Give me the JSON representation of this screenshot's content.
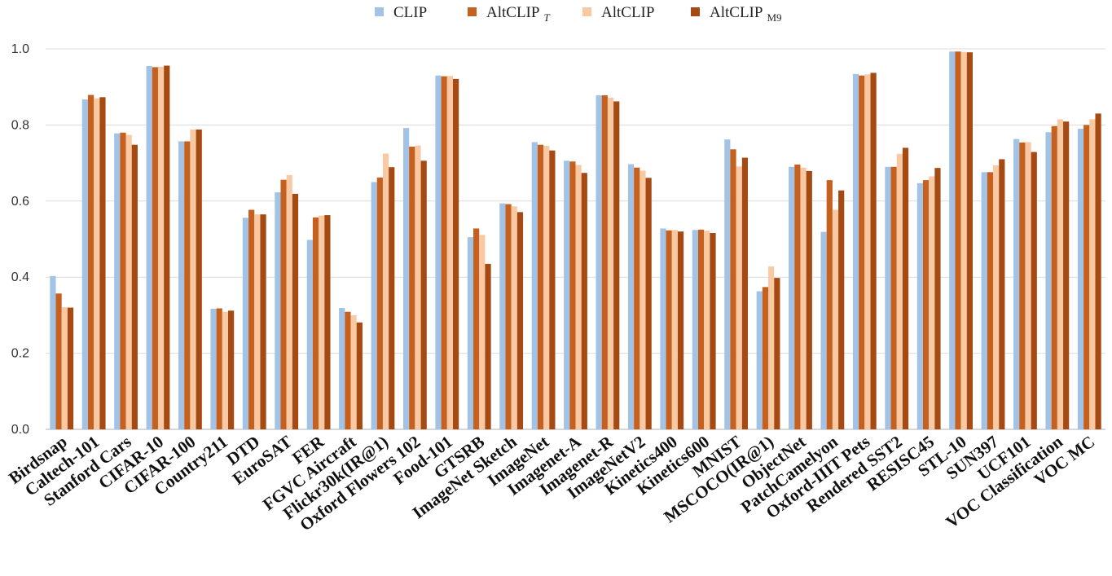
{
  "colors": {
    "CLIP": "#a3c3e6",
    "AltCLIP_T": "#c6601f",
    "AltCLIP": "#f8c9a3",
    "AltCLIP_M9": "#a54a12",
    "grid": "#dcdcdc",
    "axis": "#bfbfbf"
  },
  "legend": [
    {
      "key": "CLIP",
      "base": "CLIP",
      "sub": ""
    },
    {
      "key": "AltCLIP_T",
      "base": "AltCLIP",
      "sub": "T"
    },
    {
      "key": "AltCLIP",
      "base": "AltCLIP",
      "sub": ""
    },
    {
      "key": "AltCLIP_M9",
      "base": "AltCLIP",
      "sub": "M9"
    }
  ],
  "chart_data": {
    "type": "bar",
    "title": "",
    "xlabel": "",
    "ylabel": "",
    "ylim": [
      0,
      1.0
    ],
    "yticks": [
      "0.0",
      "0.2",
      "0.4",
      "0.6",
      "0.8",
      "1.0"
    ],
    "grid": true,
    "legend_position": "top-center",
    "categories": [
      "Birdsnap",
      "Caltech-101",
      "Stanford Cars",
      "CIFAR-10",
      "CIFAR-100",
      "Country211",
      "DTD",
      "EuroSAT",
      "FER",
      "FGVC Aircraft",
      "Flickr30k(IR@1)",
      "Oxford Flowers 102",
      "Food-101",
      "GTSRB",
      "ImageNet Sketch",
      "ImageNet",
      "Imagenet-A",
      "Imagenet-R",
      "ImageNetV2",
      "Kinetics400",
      "Kinetics600",
      "MNIST",
      "MSCOCO(IR@1)",
      "ObjectNet",
      "PatchCamelyon",
      "Oxford-IIIT Pets",
      "Rendered SST2",
      "RESISC45",
      "STL-10",
      "SUN397",
      "UCF101",
      "VOC Classification",
      "VOC MC"
    ],
    "series": [
      {
        "name": "CLIP",
        "key": "CLIP",
        "values": [
          0.403,
          0.867,
          0.778,
          0.955,
          0.757,
          0.317,
          0.556,
          0.623,
          0.498,
          0.319,
          0.65,
          0.792,
          0.93,
          0.505,
          0.594,
          0.755,
          0.706,
          0.878,
          0.697,
          0.528,
          0.524,
          0.762,
          0.363,
          0.69,
          0.519,
          0.934,
          0.69,
          0.647,
          0.993,
          0.676,
          0.763,
          0.781,
          0.79
        ]
      },
      {
        "name": "AltCLIP T",
        "key": "AltCLIP_T",
        "values": [
          0.357,
          0.879,
          0.78,
          0.952,
          0.757,
          0.318,
          0.577,
          0.656,
          0.557,
          0.309,
          0.662,
          0.743,
          0.928,
          0.528,
          0.592,
          0.748,
          0.704,
          0.878,
          0.688,
          0.523,
          0.525,
          0.736,
          0.374,
          0.696,
          0.655,
          0.93,
          0.69,
          0.655,
          0.993,
          0.676,
          0.754,
          0.797,
          0.8
        ]
      },
      {
        "name": "AltCLIP",
        "key": "AltCLIP",
        "values": [
          0.321,
          0.87,
          0.774,
          0.953,
          0.788,
          0.309,
          0.565,
          0.668,
          0.562,
          0.3,
          0.725,
          0.746,
          0.929,
          0.511,
          0.586,
          0.745,
          0.695,
          0.872,
          0.68,
          0.524,
          0.522,
          0.691,
          0.428,
          0.688,
          0.577,
          0.933,
          0.724,
          0.665,
          0.992,
          0.694,
          0.755,
          0.815,
          0.815
        ]
      },
      {
        "name": "AltCLIP M9",
        "key": "AltCLIP_M9",
        "values": [
          0.32,
          0.873,
          0.748,
          0.956,
          0.788,
          0.312,
          0.565,
          0.619,
          0.563,
          0.281,
          0.689,
          0.706,
          0.921,
          0.435,
          0.571,
          0.733,
          0.674,
          0.862,
          0.661,
          0.52,
          0.516,
          0.714,
          0.398,
          0.679,
          0.628,
          0.937,
          0.74,
          0.687,
          0.991,
          0.71,
          0.729,
          0.809,
          0.83
        ]
      }
    ]
  }
}
